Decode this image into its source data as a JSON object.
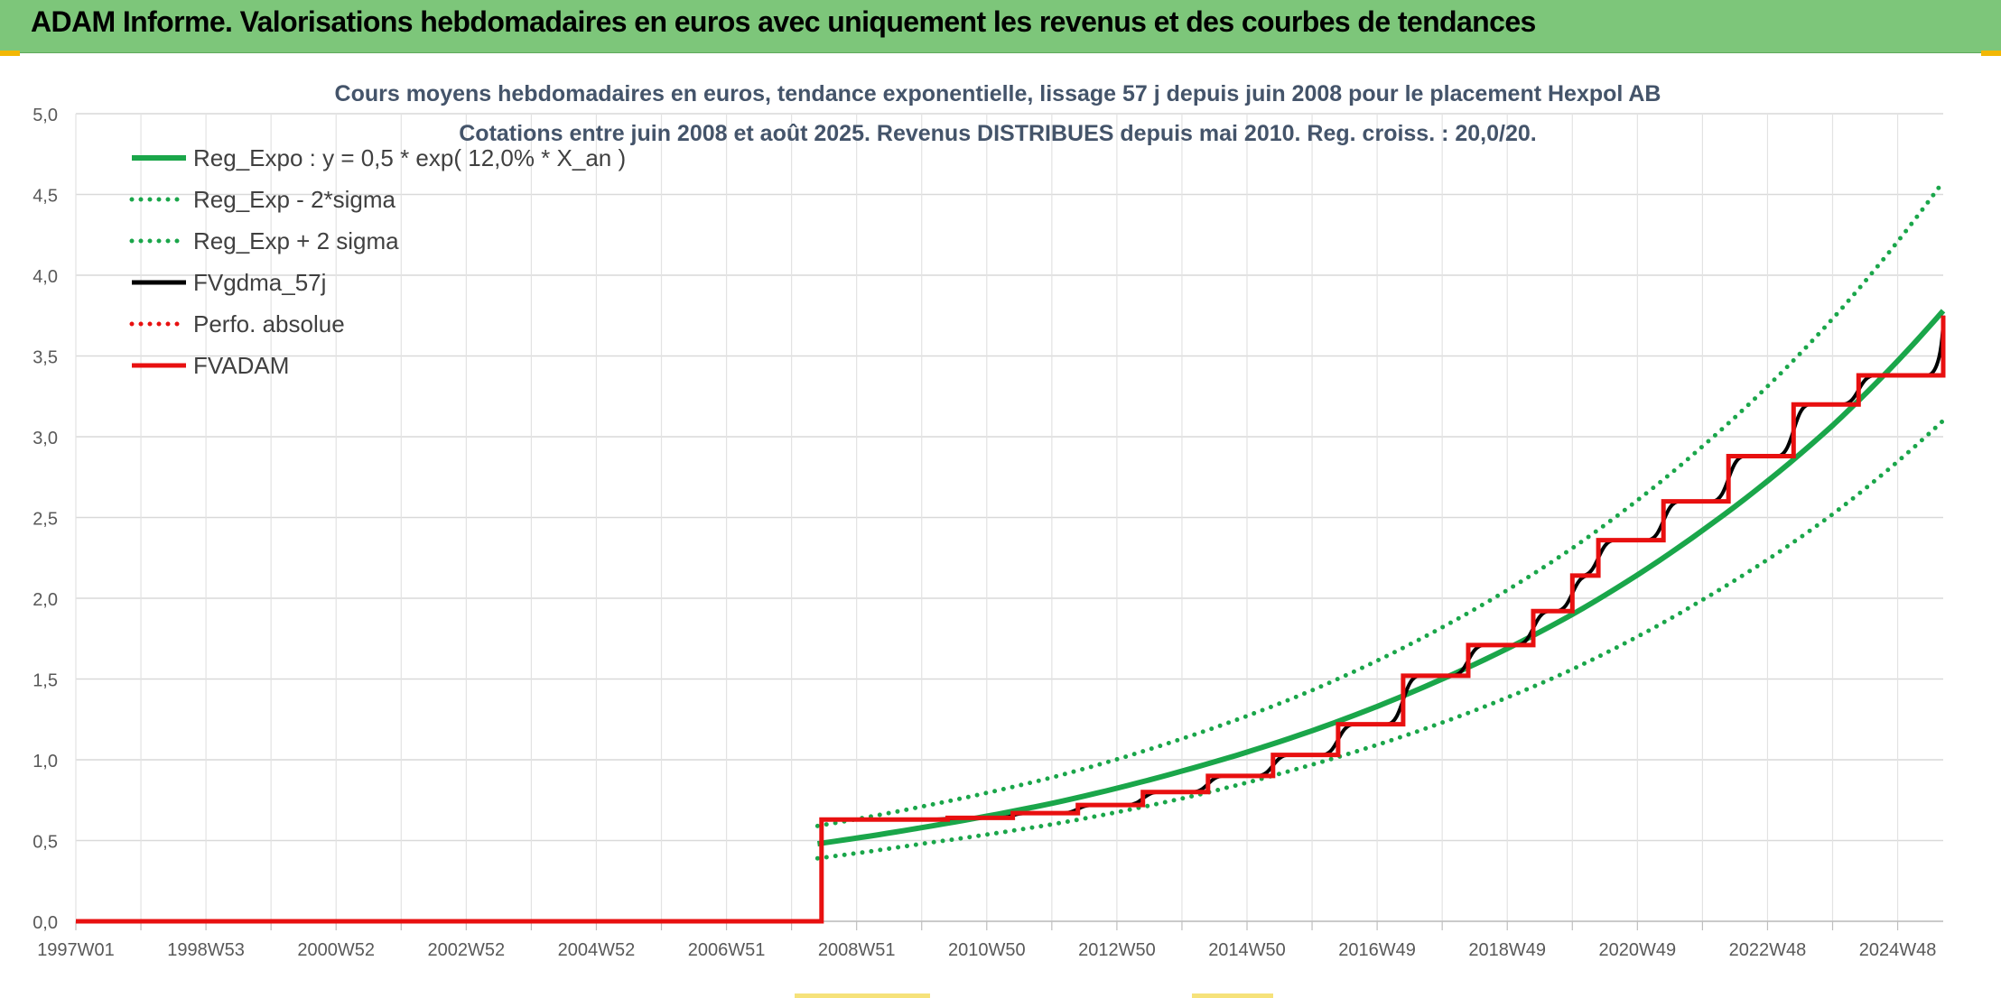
{
  "header": {
    "title": "ADAM Informe. Valorisations hebdomadaires en euros avec uniquement les revenus et des courbes de tendances"
  },
  "colors": {
    "header_bg": "#7dc67a",
    "green": "#1aa64a",
    "red": "#e81010",
    "black": "#000000",
    "grid": "#d9d9d9"
  },
  "chart_data": {
    "type": "line",
    "title": "Cours moyens hebdomadaires en euros, tendance exponentielle, lissage 57 j depuis juin 2008 pour le placement Hexpol AB",
    "subtitle": "Cotations entre juin 2008 et août 2025. Revenus DISTRIBUES depuis mai 2010. Reg. croiss. : 20,0/20.",
    "xlabel": "",
    "ylabel": "",
    "ylim": [
      0,
      5
    ],
    "yticks": [
      "0,0",
      "0,5",
      "1,0",
      "1,5",
      "2,0",
      "2,5",
      "3,0",
      "3,5",
      "4,0",
      "4,5",
      "5,0"
    ],
    "xlim": [
      1997.0,
      2025.7
    ],
    "xticks": [
      {
        "label": "1997W01",
        "x": 1997.0
      },
      {
        "label": "1998W53",
        "x": 1999.0
      },
      {
        "label": "2000W52",
        "x": 2001.0
      },
      {
        "label": "2002W52",
        "x": 2003.0
      },
      {
        "label": "2004W52",
        "x": 2005.0
      },
      {
        "label": "2006W51",
        "x": 2007.0
      },
      {
        "label": "2008W51",
        "x": 2009.0
      },
      {
        "label": "2010W50",
        "x": 2011.0
      },
      {
        "label": "2012W50",
        "x": 2013.0
      },
      {
        "label": "2014W50",
        "x": 2015.0
      },
      {
        "label": "2016W49",
        "x": 2017.0
      },
      {
        "label": "2018W49",
        "x": 2019.0
      },
      {
        "label": "2020W49",
        "x": 2021.0
      },
      {
        "label": "2022W48",
        "x": 2023.0
      },
      {
        "label": "2024W48",
        "x": 2025.0
      }
    ],
    "grid": true,
    "legend_position": "top-left",
    "series": [
      {
        "name": "Reg_Expo : y = 0,5 * exp( 12,0% *  X_an )",
        "style": "solid",
        "color": "#1aa64a",
        "x": [
          2008.4,
          2010.0,
          2012.0,
          2014.0,
          2016.0,
          2018.0,
          2020.0,
          2022.0,
          2024.0,
          2025.7
        ],
        "y": [
          0.48,
          0.58,
          0.73,
          0.93,
          1.18,
          1.5,
          1.9,
          2.42,
          3.07,
          3.78
        ]
      },
      {
        "name": "Reg_Exp - 2*sigma",
        "style": "dotted",
        "color": "#1aa64a",
        "x": [
          2008.4,
          2010.0,
          2012.0,
          2014.0,
          2016.0,
          2018.0,
          2020.0,
          2022.0,
          2024.0,
          2025.7
        ],
        "y": [
          0.39,
          0.48,
          0.6,
          0.76,
          0.97,
          1.23,
          1.56,
          1.99,
          2.52,
          3.1
        ]
      },
      {
        "name": "Reg_Exp + 2 sigma",
        "style": "dotted",
        "color": "#1aa64a",
        "x": [
          2008.4,
          2010.0,
          2012.0,
          2014.0,
          2016.0,
          2018.0,
          2020.0,
          2022.0,
          2024.0,
          2025.7
        ],
        "y": [
          0.59,
          0.71,
          0.89,
          1.13,
          1.43,
          1.82,
          2.31,
          2.94,
          3.73,
          4.58
        ]
      },
      {
        "name": "FVgdma_57j",
        "style": "smooth-steps",
        "color": "#000000",
        "x": [
          1997.0,
          2008.44,
          2008.46,
          2010.4,
          2011.4,
          2012.4,
          2013.4,
          2014.4,
          2015.4,
          2016.4,
          2017.4,
          2018.4,
          2019.4,
          2020.0,
          2020.4,
          2021.4,
          2022.4,
          2023.4,
          2024.4,
          2025.7
        ],
        "y": [
          0.0,
          0.0,
          0.63,
          0.64,
          0.67,
          0.72,
          0.8,
          0.9,
          1.03,
          1.22,
          1.52,
          1.71,
          1.92,
          2.14,
          2.36,
          2.6,
          2.88,
          3.2,
          3.38,
          3.75
        ]
      },
      {
        "name": "Perfo. absolue",
        "style": "dotted",
        "color": "#e81010",
        "x": [],
        "y": []
      },
      {
        "name": "FVADAM",
        "style": "steps",
        "color": "#e81010",
        "x": [
          1997.0,
          2008.44,
          2008.46,
          2010.4,
          2011.4,
          2012.4,
          2013.4,
          2014.4,
          2015.4,
          2016.4,
          2017.4,
          2018.4,
          2019.4,
          2020.0,
          2020.4,
          2021.4,
          2022.4,
          2023.4,
          2024.4,
          2025.7
        ],
        "y": [
          0.0,
          0.0,
          0.63,
          0.64,
          0.67,
          0.72,
          0.8,
          0.9,
          1.03,
          1.22,
          1.52,
          1.71,
          1.92,
          2.14,
          2.36,
          2.6,
          2.88,
          3.2,
          3.38,
          3.75
        ]
      }
    ]
  }
}
